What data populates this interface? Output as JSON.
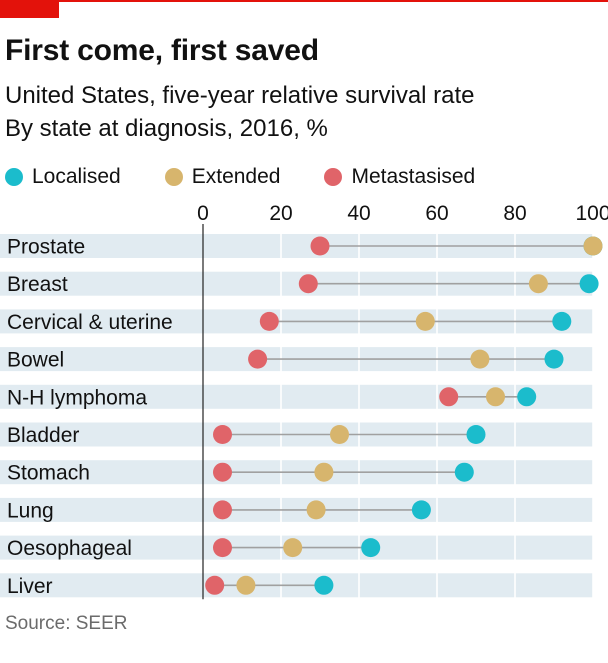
{
  "title": "First come, first saved",
  "subtitle_lines": [
    "United States, five-year relative survival rate",
    "By state at diagnosis, 2016, %"
  ],
  "source": "Source: SEER",
  "colors": {
    "localised": "#1bbccc",
    "extended": "#d7b56d",
    "metastasised": "#e06469",
    "band": "#e1ebf1",
    "connector": "#a0a0a0",
    "accent": "#e3120b"
  },
  "chart_data": {
    "type": "dot",
    "title": "First come, first saved",
    "x_ticks": [
      0,
      20,
      40,
      60,
      80,
      100
    ],
    "xlim": [
      0,
      100
    ],
    "x_axis_position": "top",
    "legend_position": "top-left",
    "grid": false,
    "categories": [
      "Prostate",
      "Breast",
      "Cervical & uterine",
      "Bowel",
      "N-H lymphoma",
      "Bladder",
      "Stomach",
      "Lung",
      "Oesophageal",
      "Liver"
    ],
    "series": [
      {
        "name": "Localised",
        "color": "#1bbccc",
        "values": [
          100,
          99,
          92,
          90,
          83,
          70,
          67,
          56,
          43,
          31
        ]
      },
      {
        "name": "Extended",
        "color": "#d7b56d",
        "values": [
          100,
          86,
          57,
          71,
          75,
          35,
          31,
          29,
          23,
          11
        ]
      },
      {
        "name": "Metastasised",
        "color": "#e06469",
        "values": [
          30,
          27,
          17,
          14,
          63,
          5,
          5,
          5,
          5,
          3
        ]
      }
    ]
  }
}
